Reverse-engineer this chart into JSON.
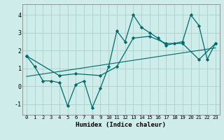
{
  "xlabel": "Humidex (Indice chaleur)",
  "background_color": "#ceecea",
  "grid_color": "#afd4d0",
  "line_color": "#006b6b",
  "xlim": [
    -0.5,
    23.5
  ],
  "ylim": [
    -1.6,
    4.6
  ],
  "xticks": [
    0,
    1,
    2,
    3,
    4,
    5,
    6,
    7,
    8,
    9,
    10,
    11,
    12,
    13,
    14,
    15,
    16,
    17,
    18,
    19,
    20,
    21,
    22,
    23
  ],
  "yticks": [
    -1,
    0,
    1,
    2,
    3,
    4
  ],
  "series1_x": [
    0,
    1,
    2,
    3,
    4,
    5,
    6,
    7,
    8,
    9,
    10,
    11,
    12,
    13,
    14,
    15,
    16,
    17,
    18,
    19,
    20,
    21,
    22,
    23
  ],
  "series1_y": [
    1.7,
    1.1,
    0.3,
    0.3,
    0.2,
    -1.1,
    0.1,
    0.3,
    -1.2,
    -0.1,
    1.1,
    3.1,
    2.5,
    4.0,
    3.3,
    3.0,
    2.7,
    2.3,
    2.4,
    2.5,
    4.0,
    3.4,
    1.5,
    2.4
  ],
  "series2_x": [
    0,
    4,
    6,
    9,
    11,
    13,
    15,
    17,
    19,
    21,
    23
  ],
  "series2_y": [
    1.7,
    0.6,
    0.7,
    0.6,
    1.1,
    2.7,
    2.8,
    2.4,
    2.4,
    1.5,
    2.4
  ],
  "trend_x": [
    0,
    23
  ],
  "trend_y": [
    0.55,
    2.15
  ]
}
